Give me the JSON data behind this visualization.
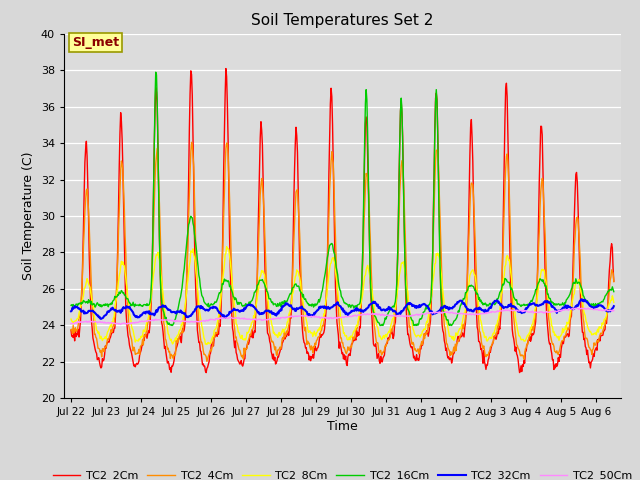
{
  "title": "Soil Temperatures Set 2",
  "xlabel": "Time",
  "ylabel": "Soil Temperature (C)",
  "ylim": [
    20,
    40
  ],
  "yticks": [
    20,
    22,
    24,
    26,
    28,
    30,
    32,
    34,
    36,
    38,
    40
  ],
  "xtick_labels": [
    "Jul 22",
    "Jul 23",
    "Jul 24",
    "Jul 25",
    "Jul 26",
    "Jul 27",
    "Jul 28",
    "Jul 29",
    "Jul 30",
    "Jul 31",
    "Aug 1",
    "Aug 2",
    "Aug 3",
    "Aug 4",
    "Aug 5",
    "Aug 6"
  ],
  "xtick_positions": [
    0,
    1,
    2,
    3,
    4,
    5,
    6,
    7,
    8,
    9,
    10,
    11,
    12,
    13,
    14,
    15
  ],
  "legend_labels": [
    "TC2_2Cm",
    "TC2_4Cm",
    "TC2_8Cm",
    "TC2_16Cm",
    "TC2_32Cm",
    "TC2_50Cm"
  ],
  "line_colors": [
    "#FF0000",
    "#FF8C00",
    "#FFFF00",
    "#00CC00",
    "#0000FF",
    "#FF88FF"
  ],
  "line_widths": [
    1.0,
    1.0,
    1.0,
    1.0,
    1.5,
    1.0
  ],
  "annotation_text": "SI_met",
  "bg_color": "#DCDCDC",
  "days": 15.5,
  "pts_per_day": 48
}
